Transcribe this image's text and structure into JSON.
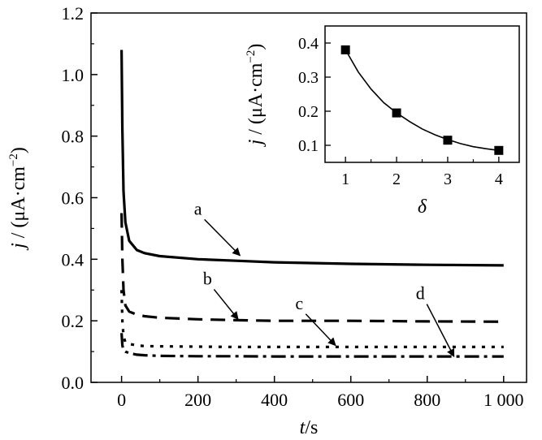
{
  "chart_data": [
    {
      "type": "line",
      "xlabel": {
        "italic": "t",
        "rest": "/s"
      },
      "ylabel": {
        "italic": "j",
        "rest": " / (μA·cm",
        "sup": "−2",
        "close": ")"
      },
      "xlim": [
        -80,
        1060
      ],
      "ylim": [
        0,
        1.2
      ],
      "xticks": [
        0,
        200,
        400,
        600,
        800,
        1000
      ],
      "xtick_labels": [
        "0",
        "200",
        "400",
        "600",
        "800",
        "1 000"
      ],
      "yticks": [
        0.0,
        0.2,
        0.4,
        0.6,
        0.8,
        1.0,
        1.2
      ],
      "ytick_labels": [
        "0.0",
        "0.2",
        "0.4",
        "0.6",
        "0.8",
        "1.0",
        "1.2"
      ],
      "series": [
        {
          "name": "a",
          "dash": "solid",
          "x": [
            0,
            2,
            5,
            10,
            20,
            40,
            60,
            100,
            200,
            300,
            400,
            600,
            800,
            1000
          ],
          "y": [
            1.08,
            0.82,
            0.62,
            0.52,
            0.46,
            0.43,
            0.42,
            0.41,
            0.4,
            0.395,
            0.39,
            0.385,
            0.382,
            0.38
          ]
        },
        {
          "name": "b",
          "dash": "dash",
          "x": [
            0,
            2,
            5,
            10,
            20,
            40,
            60,
            100,
            200,
            300,
            400,
            600,
            800,
            1000
          ],
          "y": [
            0.55,
            0.4,
            0.3,
            0.25,
            0.23,
            0.22,
            0.215,
            0.21,
            0.205,
            0.202,
            0.2,
            0.2,
            0.198,
            0.197
          ]
        },
        {
          "name": "c",
          "dash": "dot",
          "x": [
            0,
            2,
            5,
            10,
            20,
            40,
            60,
            100,
            200,
            300,
            400,
            600,
            800,
            1000
          ],
          "y": [
            0.3,
            0.2,
            0.15,
            0.13,
            0.125,
            0.12,
            0.118,
            0.117,
            0.116,
            0.115,
            0.115,
            0.115,
            0.115,
            0.115
          ]
        },
        {
          "name": "d",
          "dash": "dashdot",
          "x": [
            0,
            2,
            5,
            10,
            20,
            40,
            60,
            100,
            200,
            300,
            400,
            600,
            800,
            1000
          ],
          "y": [
            0.16,
            0.12,
            0.105,
            0.1,
            0.095,
            0.09,
            0.088,
            0.086,
            0.085,
            0.085,
            0.084,
            0.084,
            0.084,
            0.084
          ]
        }
      ],
      "annotations": [
        {
          "label": "a",
          "series": "a",
          "label_at": [
            200,
            0.545
          ],
          "arrow_to": [
            310,
            0.412
          ]
        },
        {
          "label": "b",
          "series": "b",
          "label_at": [
            225,
            0.318
          ],
          "arrow_to": [
            305,
            0.205
          ]
        },
        {
          "label": "c",
          "series": "c",
          "label_at": [
            465,
            0.238
          ],
          "arrow_to": [
            560,
            0.12
          ]
        },
        {
          "label": "d",
          "series": "d",
          "label_at": [
            782,
            0.27
          ],
          "arrow_to": [
            870,
            0.084
          ]
        }
      ]
    },
    {
      "type": "scatter",
      "xlabel": {
        "italic": "δ",
        "rest": ""
      },
      "ylabel": {
        "italic": "j",
        "rest": " / (μA·cm",
        "sup": "−2",
        "close": ")"
      },
      "xlim": [
        0.6,
        4.4
      ],
      "ylim": [
        0.05,
        0.45
      ],
      "xticks": [
        1,
        2,
        3,
        4
      ],
      "xtick_labels": [
        "1",
        "2",
        "3",
        "4"
      ],
      "yticks": [
        0.1,
        0.2,
        0.3,
        0.4
      ],
      "ytick_labels": [
        "0.1",
        "0.2",
        "0.3",
        "0.4"
      ],
      "points": {
        "x": [
          1,
          2,
          3,
          4
        ],
        "y": [
          0.38,
          0.195,
          0.115,
          0.085
        ]
      },
      "fit": {
        "x": [
          1,
          1.25,
          1.5,
          1.75,
          2,
          2.25,
          2.5,
          2.75,
          3,
          3.25,
          3.5,
          3.75,
          4
        ],
        "y": [
          0.38,
          0.315,
          0.265,
          0.225,
          0.195,
          0.17,
          0.148,
          0.131,
          0.117,
          0.105,
          0.096,
          0.09,
          0.085
        ]
      }
    }
  ]
}
